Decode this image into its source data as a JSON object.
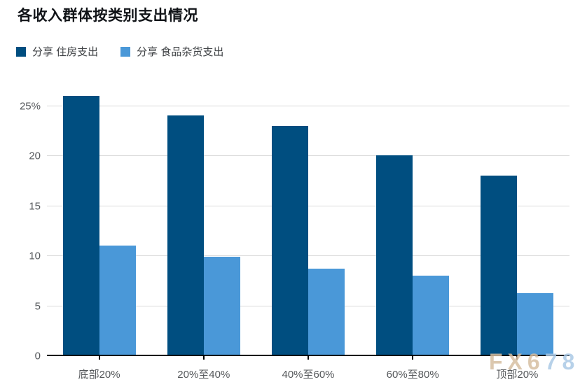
{
  "title": "各收入群体按类别支出情况",
  "legend": [
    {
      "label": "分享 住房支出",
      "color": "#004e80"
    },
    {
      "label": "分享 食品杂货支出",
      "color": "#4a98d8"
    }
  ],
  "watermark": {
    "part1": "FX6",
    "part2": "78"
  },
  "colors": {
    "housing": "#004e80",
    "grocery": "#4a98d8",
    "gridline": "#d9d9d9",
    "axis": "#000000"
  },
  "chart_data": {
    "type": "bar",
    "title": "各收入群体按类别支出情况",
    "categories": [
      "底部20%",
      "20%至40%",
      "40%至60%",
      "60%至80%",
      "顶部20%"
    ],
    "series": [
      {
        "name": "分享 住房支出",
        "color": "#004e80",
        "values": [
          26,
          24,
          23,
          20,
          18
        ]
      },
      {
        "name": "分享 食品杂货支出",
        "color": "#4a98d8",
        "values": [
          11,
          9.9,
          8.7,
          8,
          6.2
        ]
      }
    ],
    "xlabel": "",
    "ylabel": "",
    "ylim": [
      0,
      25
    ],
    "ytick_step": 5,
    "ytick_labels": [
      "0",
      "5",
      "10",
      "15",
      "20",
      "25%"
    ],
    "grid": true,
    "legend_position": "top-left"
  }
}
